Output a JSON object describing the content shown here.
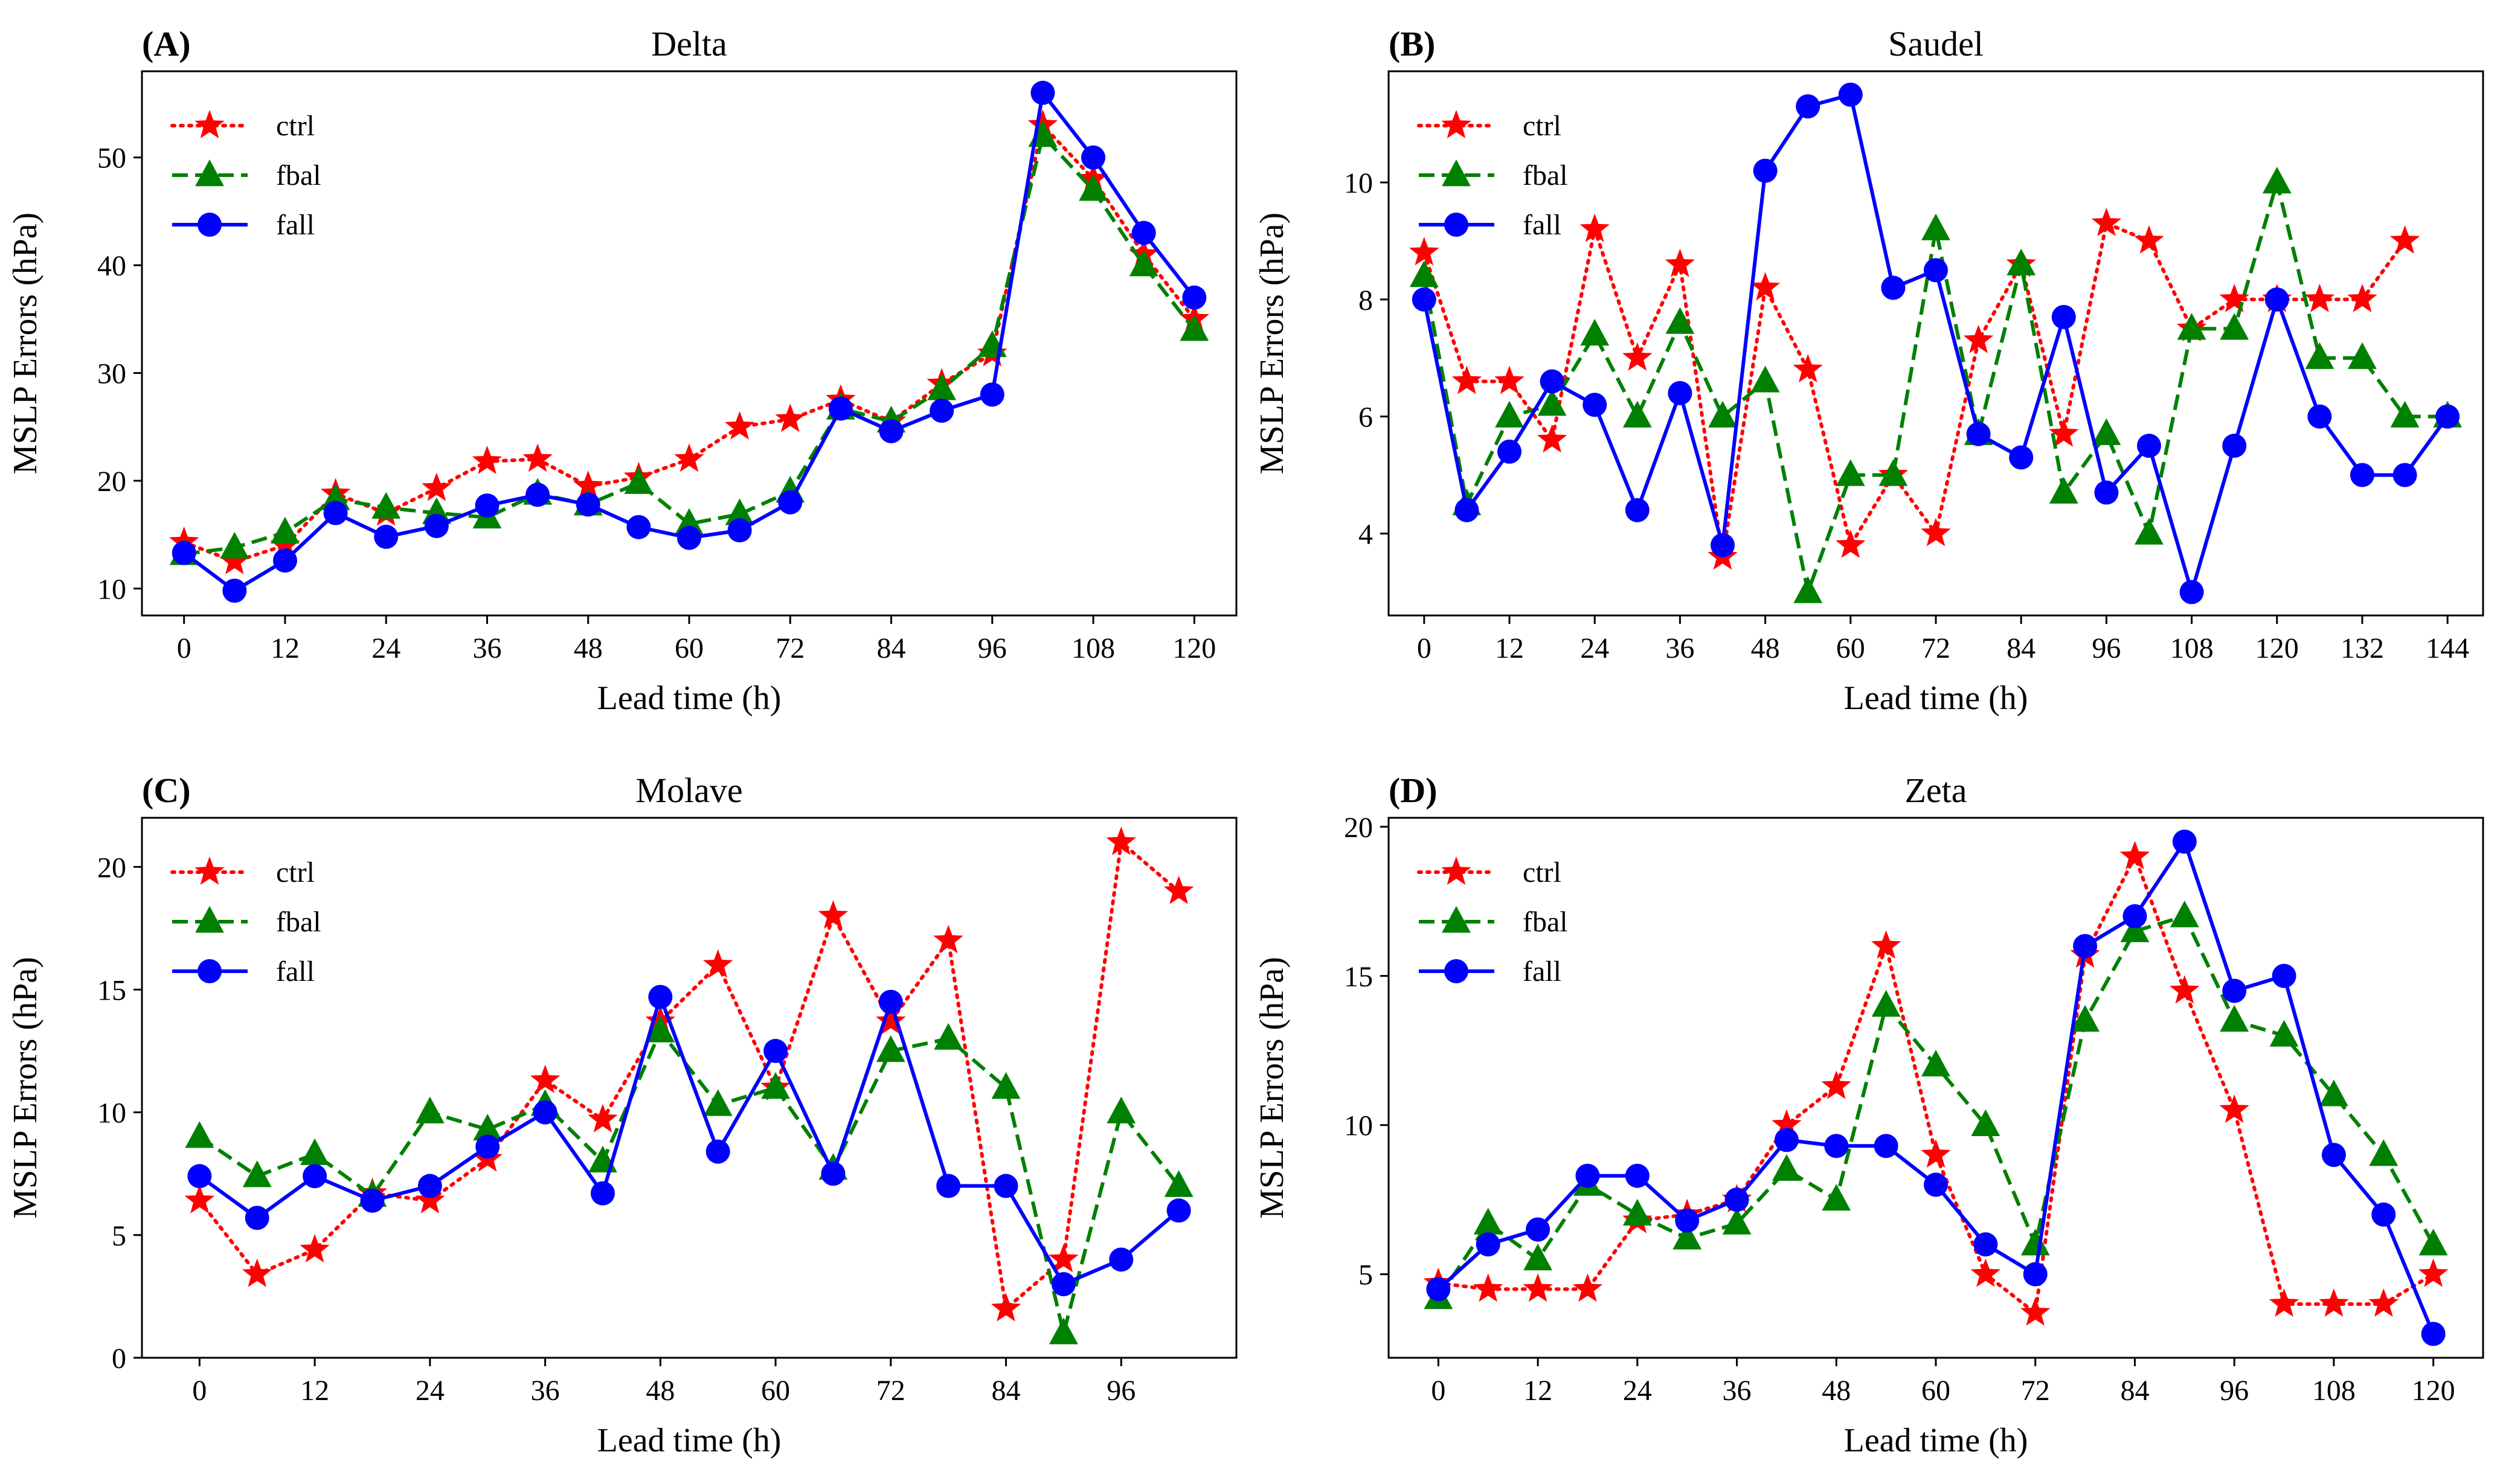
{
  "figure": {
    "legend_labels": [
      "ctrl",
      "fbal",
      "fall"
    ],
    "series_styles": {
      "ctrl": {
        "color": "#ff0000",
        "marker": "star",
        "line": "dotted"
      },
      "fbal": {
        "color": "#008000",
        "marker": "triangle",
        "line": "dashed"
      },
      "fall": {
        "color": "#0000ff",
        "marker": "circle",
        "line": "solid"
      }
    }
  },
  "chart_data": [
    {
      "type": "line",
      "panel": "(A)",
      "title": "Delta",
      "xlabel": "Lead time (h)",
      "ylabel": "MSLP Errors (hPa)",
      "xlim": [
        -5,
        125
      ],
      "ylim": [
        7.5,
        58
      ],
      "xticks": [
        0,
        12,
        24,
        36,
        48,
        60,
        72,
        84,
        96,
        108,
        120
      ],
      "yticks": [
        10,
        20,
        30,
        40,
        50
      ],
      "x": [
        0,
        6,
        12,
        18,
        24,
        30,
        36,
        42,
        48,
        54,
        60,
        66,
        72,
        78,
        84,
        90,
        96,
        102,
        108,
        114,
        120
      ],
      "series": [
        {
          "name": "ctrl",
          "values": [
            14.3,
            12.5,
            14.0,
            18.8,
            17.0,
            19.3,
            21.8,
            22.0,
            19.5,
            20.3,
            22.0,
            25.0,
            25.7,
            27.5,
            25.5,
            29.0,
            31.8,
            53.0,
            48.0,
            41.0,
            35.0
          ]
        },
        {
          "name": "fbal",
          "values": [
            13.2,
            13.8,
            15.2,
            18.3,
            17.5,
            17.0,
            16.6,
            18.8,
            17.8,
            19.8,
            16.0,
            16.9,
            19.0,
            26.7,
            25.5,
            28.5,
            32.5,
            52.0,
            47.0,
            40.0,
            34.0
          ]
        },
        {
          "name": "fall",
          "values": [
            13.3,
            9.8,
            12.6,
            17.0,
            14.8,
            15.8,
            17.7,
            18.7,
            17.8,
            15.7,
            14.7,
            15.4,
            18.0,
            26.7,
            24.6,
            26.5,
            28.0,
            56.0,
            50.0,
            43.0,
            37.0
          ]
        }
      ]
    },
    {
      "type": "line",
      "panel": "(B)",
      "title": "Saudel",
      "xlabel": "Lead time (h)",
      "ylabel": "MSLP Errors (hPa)",
      "xlim": [
        -5,
        149
      ],
      "ylim": [
        2.6,
        11.9
      ],
      "xticks": [
        0,
        12,
        24,
        36,
        48,
        60,
        72,
        84,
        96,
        108,
        120,
        132,
        144
      ],
      "yticks": [
        4,
        6,
        8,
        10
      ],
      "x": [
        0,
        6,
        12,
        18,
        24,
        30,
        36,
        42,
        48,
        54,
        60,
        66,
        72,
        78,
        84,
        90,
        96,
        102,
        108,
        114,
        120,
        126,
        132,
        138,
        144
      ],
      "series": [
        {
          "name": "ctrl",
          "values": [
            8.8,
            6.6,
            6.6,
            5.6,
            9.2,
            7.0,
            8.6,
            3.6,
            8.2,
            6.8,
            3.8,
            5.0,
            4.0,
            7.3,
            8.6,
            5.7,
            9.3,
            9.0,
            7.5,
            8.0,
            8.0,
            8.0,
            8.0,
            9.0,
            null
          ]
        },
        {
          "name": "fbal",
          "values": [
            8.4,
            4.5,
            6.0,
            6.2,
            7.4,
            6.0,
            7.6,
            6.0,
            6.6,
            3.0,
            5.0,
            5.0,
            9.2,
            5.7,
            8.6,
            4.7,
            5.7,
            4.0,
            7.5,
            7.5,
            10.0,
            7.0,
            7.0,
            6.0,
            6.0
          ]
        },
        {
          "name": "fall",
          "values": [
            8.0,
            4.4,
            5.4,
            6.6,
            6.2,
            4.4,
            6.4,
            3.8,
            10.2,
            11.3,
            11.5,
            8.2,
            8.5,
            5.7,
            5.3,
            7.7,
            4.7,
            5.5,
            3.0,
            5.5,
            8.0,
            6.0,
            5.0,
            5.0,
            6.0
          ]
        }
      ]
    },
    {
      "type": "line",
      "panel": "(C)",
      "title": "Molave",
      "xlabel": "Lead time (h)",
      "ylabel": "MSLP Errors (hPa)",
      "xlim": [
        -6,
        108
      ],
      "ylim": [
        0,
        22
      ],
      "xticks": [
        0,
        12,
        24,
        36,
        48,
        60,
        72,
        84,
        96
      ],
      "yticks": [
        0,
        5,
        10,
        15,
        20
      ],
      "x": [
        0,
        6,
        12,
        18,
        24,
        30,
        36,
        42,
        48,
        54,
        60,
        66,
        72,
        78,
        84,
        90,
        96,
        102
      ],
      "series": [
        {
          "name": "ctrl",
          "values": [
            6.4,
            3.4,
            4.4,
            6.7,
            6.4,
            8.1,
            11.3,
            9.7,
            13.7,
            16.0,
            11.0,
            18.0,
            13.7,
            17.0,
            2.0,
            4.0,
            21.0,
            19.0
          ]
        },
        {
          "name": "fbal",
          "values": [
            9.0,
            7.4,
            8.3,
            6.6,
            10.0,
            9.3,
            10.3,
            8.0,
            13.3,
            10.3,
            11.0,
            7.7,
            12.5,
            13.0,
            11.0,
            1.0,
            10.0,
            7.0
          ]
        },
        {
          "name": "fall",
          "values": [
            7.4,
            5.7,
            7.4,
            6.4,
            7.0,
            8.6,
            10.0,
            6.7,
            14.7,
            8.4,
            12.5,
            7.5,
            14.5,
            7.0,
            7.0,
            3.0,
            4.0,
            6.0
          ]
        }
      ]
    },
    {
      "type": "line",
      "panel": "(D)",
      "title": "Zeta",
      "xlabel": "Lead time (h)",
      "ylabel": "MSLP Errors (hPa)",
      "xlim": [
        -6,
        126
      ],
      "ylim": [
        2.2,
        20.3
      ],
      "xticks": [
        0,
        12,
        24,
        36,
        48,
        60,
        72,
        84,
        96,
        108,
        120
      ],
      "yticks": [
        5,
        10,
        15,
        20
      ],
      "x": [
        0,
        6,
        12,
        18,
        24,
        30,
        36,
        42,
        48,
        54,
        60,
        66,
        72,
        78,
        84,
        90,
        96,
        102,
        108,
        114,
        120
      ],
      "series": [
        {
          "name": "ctrl",
          "values": [
            4.7,
            4.5,
            4.5,
            4.5,
            6.8,
            7.0,
            7.5,
            10.0,
            11.3,
            16.0,
            9.0,
            5.0,
            3.7,
            15.7,
            19.0,
            14.5,
            10.5,
            4.0,
            4.0,
            4.0,
            5.0
          ]
        },
        {
          "name": "fbal",
          "values": [
            4.2,
            6.7,
            5.5,
            8.0,
            7.0,
            6.2,
            6.7,
            8.5,
            7.5,
            14.0,
            12.0,
            10.0,
            6.0,
            13.5,
            16.5,
            17.0,
            13.5,
            13.0,
            11.0,
            9.0,
            6.0
          ]
        },
        {
          "name": "fall",
          "values": [
            4.5,
            6.0,
            6.5,
            8.3,
            8.3,
            6.8,
            7.5,
            9.5,
            9.3,
            9.3,
            8.0,
            6.0,
            5.0,
            16.0,
            17.0,
            19.5,
            14.5,
            15.0,
            9.0,
            7.0,
            3.0
          ]
        }
      ]
    }
  ]
}
